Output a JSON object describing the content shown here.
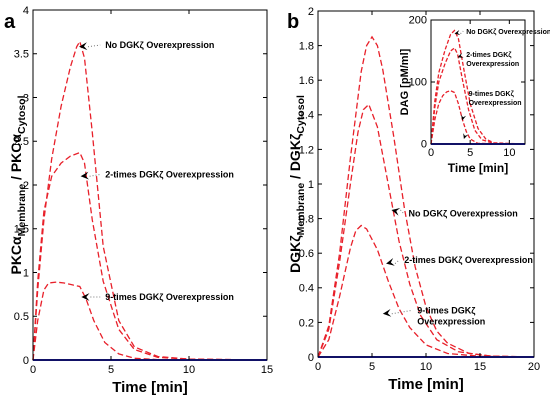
{
  "chart_data": [
    {
      "id": "a",
      "type": "line",
      "panel_label": "a",
      "xlabel": "Time [min]",
      "ylabel_parts": [
        "PKCα",
        "Membrane",
        " / PKCα",
        "Cytosol"
      ],
      "xlim": [
        0,
        15
      ],
      "ylim": [
        0,
        4
      ],
      "xticks": [
        0,
        5,
        10,
        15
      ],
      "yticks": [
        0,
        0.5,
        1,
        1.5,
        2,
        2.5,
        3,
        3.5,
        4
      ],
      "ytick_labels": [
        "0",
        "0.5",
        "1",
        "1.5",
        "2",
        "2.5",
        "3",
        "3.5",
        "4"
      ],
      "series": [
        {
          "style": "dashed",
          "color": "#e8202a",
          "x": [
            0,
            0.3,
            0.7,
            1.2,
            1.8,
            2.4,
            2.8,
            3.0,
            3.3,
            3.8,
            4.5,
            5.5,
            6.5,
            8.0,
            10.0,
            15.0
          ],
          "y": [
            0,
            0.8,
            1.6,
            2.3,
            2.9,
            3.35,
            3.58,
            3.64,
            3.45,
            2.6,
            1.3,
            0.45,
            0.15,
            0.04,
            0.01,
            0
          ]
        },
        {
          "style": "dashed",
          "color": "#e8202a",
          "x": [
            0,
            0.3,
            0.7,
            1.2,
            1.8,
            2.4,
            3.0,
            3.3,
            3.8,
            4.5,
            5.5,
            6.5,
            8.0,
            10.0,
            15.0
          ],
          "y": [
            0,
            0.9,
            1.7,
            2.1,
            2.25,
            2.33,
            2.37,
            2.25,
            1.6,
            0.9,
            0.35,
            0.12,
            0.03,
            0.01,
            0
          ]
        },
        {
          "style": "dashed",
          "color": "#e8202a",
          "x": [
            0,
            0.3,
            0.7,
            1.0,
            1.5,
            2.0,
            2.5,
            3.0,
            3.4,
            3.9,
            4.6,
            5.5,
            6.5,
            8.0,
            15.0
          ],
          "y": [
            0,
            0.45,
            0.8,
            0.88,
            0.89,
            0.88,
            0.86,
            0.84,
            0.7,
            0.45,
            0.2,
            0.07,
            0.02,
            0.005,
            0
          ]
        },
        {
          "style": "solid",
          "color": "#2222cc",
          "x": [
            0,
            15
          ],
          "y": [
            0,
            0
          ]
        }
      ],
      "annotations": [
        {
          "text": "No DGKζ Overexpression",
          "point": [
            2.95,
            3.58
          ],
          "text_at": [
            4.5,
            3.6
          ]
        },
        {
          "text": "2-times DGKζ Overexpression",
          "point": [
            3.05,
            2.1
          ],
          "text_at": [
            4.5,
            2.12
          ]
        },
        {
          "text": "9-times DGKζ Overexpression",
          "point": [
            3.1,
            0.72
          ],
          "text_at": [
            4.5,
            0.72
          ]
        }
      ]
    },
    {
      "id": "b",
      "type": "line",
      "panel_label": "b",
      "xlabel": "Time [min]",
      "ylabel_parts": [
        "DGKζ",
        "Membrane",
        " / DGKζ",
        "Cytosol"
      ],
      "xlim": [
        0,
        20
      ],
      "ylim": [
        0,
        2
      ],
      "xticks": [
        0,
        5,
        10,
        15,
        20
      ],
      "yticks": [
        0,
        0.2,
        0.4,
        0.6,
        0.8,
        1,
        1.2,
        1.4,
        1.6,
        1.8,
        2
      ],
      "ytick_labels": [
        "0",
        "0.2",
        "0.4",
        "0.6",
        "0.8",
        "1",
        "1.2",
        "1.4",
        "1.6",
        "1.8",
        "2"
      ],
      "series": [
        {
          "style": "dashed",
          "color": "#e8202a",
          "x": [
            0,
            1,
            2,
            3,
            4,
            4.5,
            5,
            5.5,
            6,
            7,
            8,
            9,
            10,
            11,
            12,
            14,
            16,
            20
          ],
          "y": [
            0,
            0.18,
            0.6,
            1.15,
            1.65,
            1.8,
            1.85,
            1.8,
            1.66,
            1.28,
            0.86,
            0.52,
            0.29,
            0.15,
            0.08,
            0.02,
            0.005,
            0
          ]
        },
        {
          "style": "dashed",
          "color": "#e8202a",
          "x": [
            0,
            1,
            2,
            3,
            3.7,
            4.2,
            4.7,
            5.5,
            6.5,
            7.5,
            8.5,
            9.5,
            11,
            13,
            16,
            20
          ],
          "y": [
            0,
            0.16,
            0.55,
            1.0,
            1.3,
            1.43,
            1.46,
            1.33,
            1.0,
            0.67,
            0.42,
            0.24,
            0.1,
            0.03,
            0.005,
            0
          ]
        },
        {
          "style": "dashed",
          "color": "#e8202a",
          "x": [
            0,
            1,
            2,
            3,
            3.5,
            4,
            4.5,
            5.5,
            6.5,
            7.5,
            8.5,
            10,
            12,
            15,
            20
          ],
          "y": [
            0,
            0.1,
            0.35,
            0.63,
            0.73,
            0.76,
            0.74,
            0.62,
            0.44,
            0.28,
            0.17,
            0.07,
            0.02,
            0.004,
            0
          ]
        },
        {
          "style": "solid",
          "color": "#2222cc",
          "x": [
            0,
            20
          ],
          "y": [
            0,
            0
          ]
        }
      ],
      "annotations": [
        {
          "text": "No DGKζ Overexpression",
          "point": [
            6.8,
            0.85
          ],
          "text_at": [
            8.2,
            0.83
          ]
        },
        {
          "text": "2-times DGKζ Overexpression",
          "point": [
            6.3,
            0.54
          ],
          "text_at": [
            7.8,
            0.56
          ]
        },
        {
          "text": [
            "9-times DGKζ",
            "Overexpression"
          ],
          "point": [
            6.0,
            0.25
          ],
          "text_at": [
            9.0,
            0.27
          ]
        }
      ]
    },
    {
      "id": "b-inset",
      "type": "line",
      "xlabel": "Time [min]",
      "ylabel": "DAG [pM/ml]",
      "xlim": [
        0,
        12
      ],
      "ylim": [
        0,
        200
      ],
      "xticks": [
        0,
        5,
        10
      ],
      "yticks": [
        0,
        100,
        200
      ],
      "series": [
        {
          "style": "dashed",
          "color": "#e8202a",
          "x": [
            0,
            0.5,
            1,
            1.8,
            2.5,
            3,
            3.5,
            4.2,
            5,
            6,
            7,
            8,
            12
          ],
          "y": [
            0,
            70,
            115,
            152,
            177,
            183,
            170,
            120,
            65,
            25,
            8,
            2,
            0
          ]
        },
        {
          "style": "dashed",
          "color": "#e8202a",
          "x": [
            0,
            0.5,
            1,
            1.8,
            2.5,
            3,
            3.4,
            4,
            4.8,
            5.6,
            6.5,
            8,
            12
          ],
          "y": [
            0,
            60,
            100,
            130,
            150,
            155,
            145,
            105,
            55,
            22,
            7,
            1,
            0
          ]
        },
        {
          "style": "dashed",
          "color": "#e8202a",
          "x": [
            0,
            0.5,
            1,
            1.5,
            2,
            2.5,
            3,
            3.5,
            4,
            4.5,
            5,
            6,
            12
          ],
          "y": [
            0,
            40,
            65,
            78,
            84,
            86,
            83,
            65,
            40,
            20,
            8,
            1,
            0
          ]
        },
        {
          "style": "solid",
          "color": "#2222cc",
          "x": [
            0,
            12
          ],
          "y": [
            0,
            0
          ]
        }
      ],
      "annotations": [
        {
          "text": "No DGKζ Overexpression",
          "point": [
            3.0,
            178
          ],
          "text_at": [
            4.5,
            182
          ]
        },
        {
          "text": [
            "2-times DGKζ",
            "Overexpression"
          ],
          "point": [
            3.4,
            140
          ],
          "text_at": [
            4.5,
            145
          ]
        },
        {
          "text": [
            "9-times DGKζ",
            "Overexpression"
          ],
          "point": [
            4.0,
            38
          ],
          "text_at": [
            4.8,
            82
          ]
        },
        {
          "text": "",
          "point": [
            4.2,
            8
          ],
          "text_at": [
            4.8,
            30
          ]
        }
      ]
    }
  ]
}
